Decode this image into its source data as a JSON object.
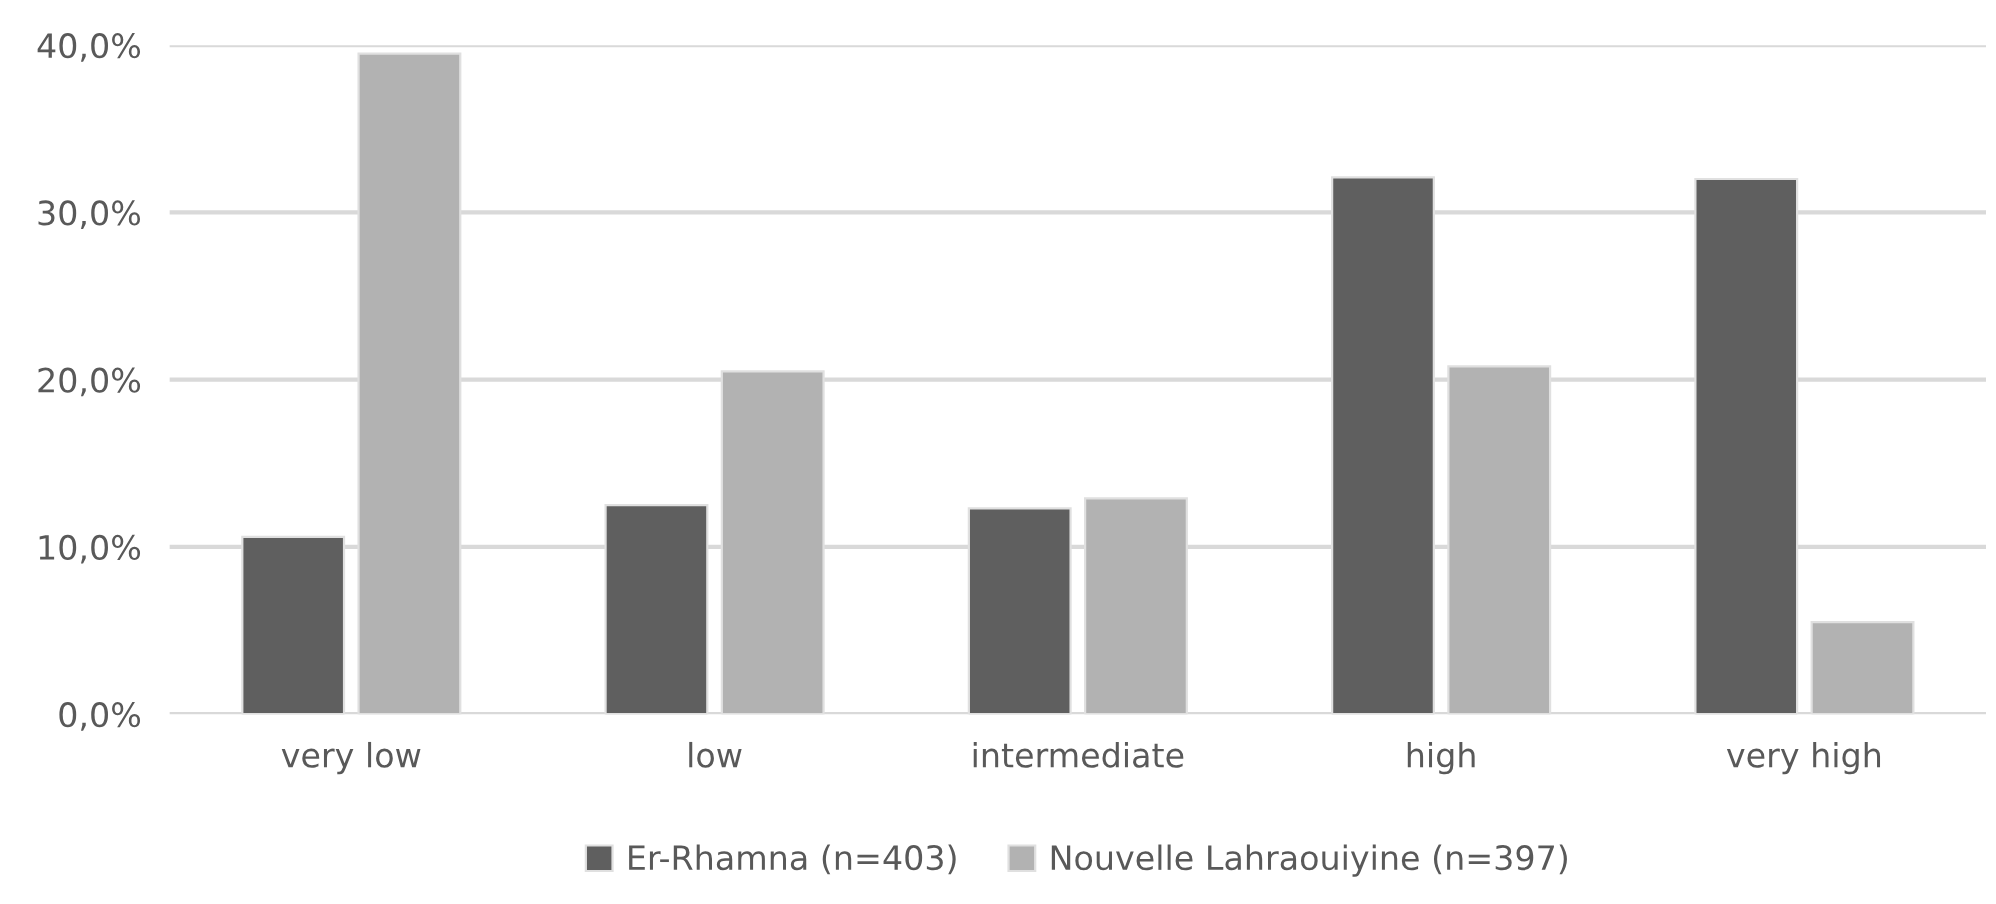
{
  "chart_data": {
    "type": "bar",
    "categories": [
      "very low",
      "low",
      "intermediate",
      "high",
      "very high"
    ],
    "series": [
      {
        "name": "Er-Rhamna (n=403)",
        "color": "#5f5f5f",
        "values": [
          10.6,
          12.5,
          12.3,
          32.1,
          32.0
        ]
      },
      {
        "name": "Nouvelle Lahraouiyine (n=397)",
        "color": "#b2b2b2",
        "values": [
          39.5,
          20.5,
          12.9,
          20.8,
          5.5
        ]
      }
    ],
    "ylim": [
      0,
      40
    ],
    "yticks": [
      {
        "value": 0,
        "label": "0,0%"
      },
      {
        "value": 10,
        "label": "10,0%"
      },
      {
        "value": 20,
        "label": "20,0%"
      },
      {
        "value": 30,
        "label": "30,0%"
      },
      {
        "value": 40,
        "label": "40,0%"
      }
    ],
    "grid": "y",
    "legend": "bottom"
  }
}
